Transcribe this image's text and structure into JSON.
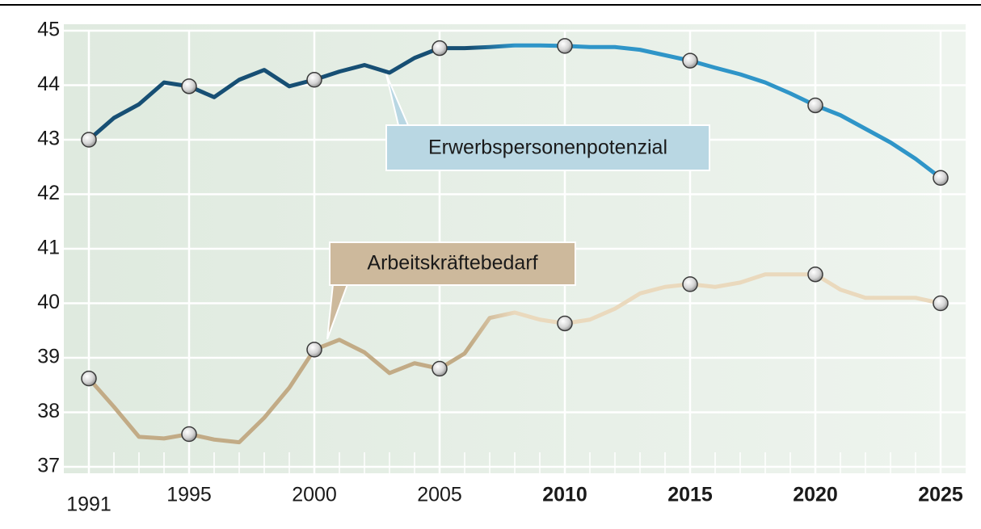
{
  "chart_data": {
    "type": "line",
    "x": [
      1991,
      1992,
      1993,
      1994,
      1995,
      1996,
      1997,
      1998,
      1999,
      2000,
      2001,
      2002,
      2003,
      2004,
      2005,
      2006,
      2007,
      2008,
      2009,
      2010,
      2011,
      2012,
      2013,
      2014,
      2015,
      2016,
      2017,
      2018,
      2019,
      2020,
      2021,
      2022,
      2023,
      2024,
      2025
    ],
    "series": [
      {
        "name": "Erwerbspersonenpotenzial",
        "colors": [
          "#174f74",
          "#2f95c8"
        ],
        "values": [
          43.0,
          43.4,
          43.65,
          44.05,
          43.98,
          43.78,
          44.1,
          44.28,
          43.98,
          44.1,
          44.25,
          44.37,
          44.23,
          44.5,
          44.68,
          44.68,
          44.7,
          44.73,
          44.73,
          44.72,
          44.7,
          44.7,
          44.65,
          44.55,
          44.45,
          44.32,
          44.2,
          44.05,
          43.85,
          43.63,
          43.45,
          43.2,
          42.95,
          42.65,
          42.3
        ]
      },
      {
        "name": "Arbeitskräftebedarf",
        "colors": [
          "#c2ab86",
          "#ead9bd"
        ],
        "values": [
          38.62,
          38.1,
          37.55,
          37.52,
          37.6,
          37.5,
          37.45,
          37.9,
          38.45,
          39.15,
          39.33,
          39.1,
          38.72,
          38.9,
          38.8,
          39.08,
          39.73,
          39.83,
          39.7,
          39.63,
          39.7,
          39.9,
          40.18,
          40.3,
          40.35,
          40.3,
          40.38,
          40.53,
          40.53,
          40.53,
          40.25,
          40.1,
          40.1,
          40.1,
          40.0
        ]
      }
    ],
    "xlim": [
      1990,
      2026
    ],
    "xticks": [
      1991,
      1995,
      2000,
      2005,
      2010,
      2015,
      2020,
      2025
    ],
    "ylim": [
      37,
      45
    ],
    "yticks": [
      37,
      38,
      39,
      40,
      41,
      42,
      43,
      44,
      45
    ],
    "grid": true
  }
}
